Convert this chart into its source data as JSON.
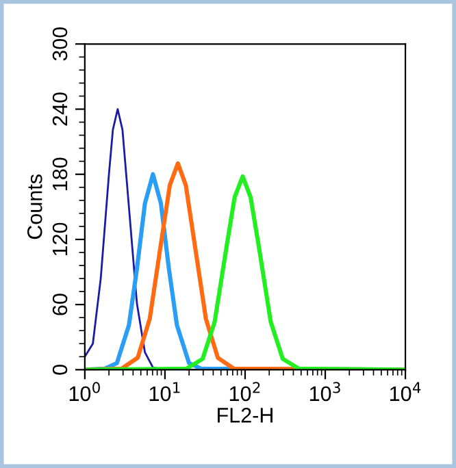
{
  "chart_data": {
    "type": "line",
    "xlabel": "FL2-H",
    "ylabel": "Counts",
    "log": "x",
    "xlim": [
      1,
      10000
    ],
    "xticks": [
      {
        "value": 1,
        "label": "10$^{0}$"
      },
      {
        "value": 10,
        "label": "10$^{1}$"
      },
      {
        "value": 100,
        "label": "10$^{2}$"
      },
      {
        "value": 1000,
        "label": "10$^{3}$"
      },
      {
        "value": 10000,
        "label": "10$^{4}$"
      }
    ],
    "ylim": [
      0,
      300
    ],
    "yticks": [
      0,
      60,
      120,
      180,
      240,
      300
    ],
    "grid": false,
    "marker": "none",
    "line_style": "solid",
    "series": [
      {
        "color": "#1a1aa6",
        "x": [
          1,
          1.26,
          1.58,
          2.0,
          2.24,
          2.57,
          2.95,
          3.55,
          4.47,
          5.62,
          7.08,
          10,
          10000
        ],
        "values": [
          12,
          24,
          84,
          180,
          221,
          240,
          221,
          150,
          61,
          16,
          2,
          0,
          0
        ]
      },
      {
        "color": "#2a9df4",
        "x": [
          1,
          1.78,
          2.51,
          3.55,
          4.47,
          5.62,
          7.08,
          8.91,
          11.2,
          14.1,
          20.0,
          28.2,
          10000
        ],
        "values": [
          0,
          1,
          6,
          41,
          93,
          153,
          180,
          153,
          93,
          41,
          6,
          1,
          0
        ]
      },
      {
        "color": "#ff6a13",
        "x": [
          1,
          2.88,
          4.57,
          6.46,
          9.12,
          11.5,
          14.5,
          18.2,
          22.9,
          32.4,
          45.7,
          72.4,
          10000
        ],
        "values": [
          0,
          1,
          11,
          47,
          121,
          170,
          190,
          170,
          121,
          47,
          11,
          1,
          0
        ]
      },
      {
        "color": "#22ee22",
        "x": [
          1,
          18.6,
          29.5,
          41.7,
          58.9,
          74.1,
          93.3,
          117,
          148,
          209,
          295,
          468,
          10000
        ],
        "values": [
          0,
          1,
          10,
          44,
          114,
          159,
          178,
          159,
          114,
          44,
          10,
          1,
          0
        ]
      }
    ]
  }
}
